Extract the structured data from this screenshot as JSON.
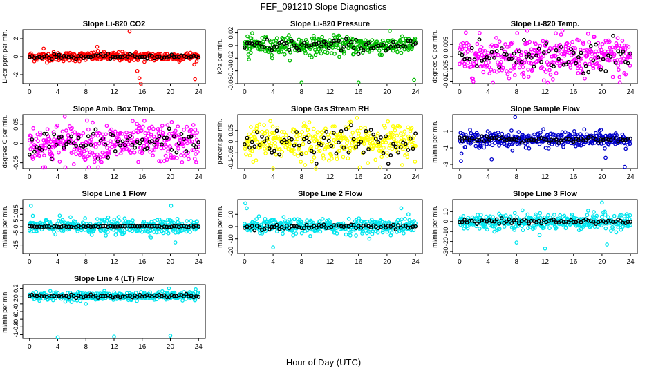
{
  "figure": {
    "title": "FEF_091210  Slope Diagnostics",
    "xlabel": "Hour of Day (UTC)"
  },
  "chart_data": [
    {
      "type": "scatter",
      "title": "Slope Li-820 CO2",
      "ylabel": "Li-cor ppm per min.",
      "xlim": [
        0,
        24
      ],
      "xticks": [
        0,
        4,
        8,
        12,
        16,
        20,
        24
      ],
      "ylim": [
        -3,
        3
      ],
      "yticks": [
        -2,
        0,
        2
      ],
      "color": "#ff0000",
      "noise": 0.25,
      "outliers": [
        [
          14.2,
          2.8
        ],
        [
          15.3,
          -1.6
        ],
        [
          15.6,
          -2.4
        ],
        [
          15.8,
          -3.0
        ],
        [
          23.5,
          -2.5
        ],
        [
          9.6,
          1.1
        ],
        [
          2.0,
          0.9
        ]
      ],
      "mean_noise": 0.12
    },
    {
      "type": "scatter",
      "title": "Slope Li-820 Pressure",
      "ylabel": "kPa per min.",
      "xlim": [
        0,
        24
      ],
      "xticks": [
        0,
        4,
        8,
        12,
        16,
        20,
        24
      ],
      "ylim": [
        -0.06,
        0.025
      ],
      "yticks": [
        -0.06,
        -0.04,
        -0.02,
        0.0,
        0.02
      ],
      "color": "#00bb00",
      "noise": 0.007,
      "center": 0.0,
      "outliers": [
        [
          8.0,
          -0.058
        ],
        [
          16.0,
          -0.058
        ],
        [
          23.8,
          -0.054
        ],
        [
          0.6,
          -0.022
        ]
      ],
      "mean_noise": 0.005
    },
    {
      "type": "scatter",
      "title": "Slope Li-820 Temp.",
      "ylabel": "degrees C per min.",
      "xlim": [
        0,
        24
      ],
      "xticks": [
        0,
        4,
        8,
        12,
        16,
        20,
        24
      ],
      "ylim": [
        -0.011,
        0.011
      ],
      "yticks": [
        -0.01,
        -0.005,
        0.0,
        0.005
      ],
      "color": "#ff00ff",
      "noise": 0.004,
      "center": 0.0,
      "outliers": [
        [
          9.5,
          0.0105
        ],
        [
          22.5,
          -0.0105
        ]
      ],
      "mean_noise": 0.004
    },
    {
      "type": "scatter",
      "title": "Slope Amb. Box Temp.",
      "ylabel": "degrees C per min.",
      "xlim": [
        0,
        24
      ],
      "xticks": [
        0,
        4,
        8,
        12,
        16,
        20,
        24
      ],
      "ylim": [
        -0.065,
        0.075
      ],
      "yticks": [
        -0.05,
        0.0,
        0.05
      ],
      "color": "#ff00ff",
      "noise": 0.025,
      "center": 0.0,
      "outliers": [
        [
          2.2,
          -0.062
        ],
        [
          5.0,
          0.07
        ]
      ],
      "mean_noise": 0.018
    },
    {
      "type": "scatter",
      "title": "Slope Gas Stream RH",
      "ylabel": "percent per min.",
      "xlim": [
        0,
        24
      ],
      "xticks": [
        0,
        4,
        8,
        12,
        16,
        20,
        24
      ],
      "ylim": [
        -0.12,
        0.12
      ],
      "yticks": [
        -0.1,
        -0.05,
        0.0,
        0.05
      ],
      "color": "#ffff00",
      "noise": 0.04,
      "center": 0.0,
      "outliers": [
        [
          4.0,
          -0.12
        ],
        [
          10.0,
          -0.12
        ]
      ],
      "mean_noise": 0.035
    },
    {
      "type": "scatter",
      "title": "Slope Sample Flow",
      "ylabel": "ml/min per min.",
      "xlim": [
        0,
        24
      ],
      "xticks": [
        0,
        4,
        8,
        12,
        16,
        20,
        24
      ],
      "ylim": [
        -3.5,
        3.0
      ],
      "yticks": [
        -3,
        -1,
        1
      ],
      "color": "#0000cc",
      "noise": 0.45,
      "center": 0.0,
      "outliers": [
        [
          0.2,
          -2.6
        ],
        [
          7.8,
          2.7
        ],
        [
          23.2,
          -3.3
        ],
        [
          4.5,
          -2.4
        ],
        [
          20.5,
          -2.2
        ]
      ],
      "mean_noise": 0.15
    },
    {
      "type": "scatter",
      "title": "Slope Line 1 Flow",
      "ylabel": "ml/min per min.",
      "xlim": [
        0,
        24
      ],
      "xticks": [
        0,
        4,
        8,
        12,
        16,
        20,
        24
      ],
      "ylim": [
        -22,
        22
      ],
      "yticks": [
        -15,
        -5,
        0,
        5,
        10,
        15
      ],
      "color": "#00e5ee",
      "noise": 3.0,
      "center": 0.0,
      "outliers": [
        [
          0.2,
          17
        ],
        [
          20.1,
          17
        ],
        [
          20.7,
          -13
        ]
      ],
      "mean_noise": 0.3
    },
    {
      "type": "scatter",
      "title": "Slope Line 2 Flow",
      "ylabel": "ml/min per min.",
      "xlim": [
        0,
        24
      ],
      "xticks": [
        0,
        4,
        8,
        12,
        16,
        20,
        24
      ],
      "ylim": [
        -22,
        22
      ],
      "yticks": [
        -20,
        -10,
        0,
        10
      ],
      "color": "#00e5ee",
      "noise": 3.0,
      "center": 0.0,
      "outliers": [
        [
          0.1,
          19
        ],
        [
          0.3,
          15
        ],
        [
          4.0,
          -17
        ],
        [
          22.0,
          15
        ],
        [
          23.0,
          10
        ]
      ],
      "mean_noise": 1.2
    },
    {
      "type": "scatter",
      "title": "Slope Line 3 Flow",
      "ylabel": "ml/min per min.",
      "xlim": [
        0,
        24
      ],
      "xticks": [
        0,
        4,
        8,
        12,
        16,
        20,
        24
      ],
      "ylim": [
        -32,
        22
      ],
      "yticks": [
        -30,
        -20,
        -10,
        0,
        10
      ],
      "color": "#00e5ee",
      "noise": 4.0,
      "center": 0.0,
      "outliers": [
        [
          20.0,
          19
        ],
        [
          20.7,
          -23
        ],
        [
          8.0,
          -21
        ],
        [
          12.0,
          -27
        ]
      ],
      "mean_noise": 1.5
    },
    {
      "type": "scatter",
      "title": "Slope Line 4 (LT) Flow",
      "ylabel": "ml/min per min.",
      "xlim": [
        0,
        24
      ],
      "xticks": [
        0,
        4,
        8,
        12,
        16,
        20,
        24
      ],
      "ylim": [
        -1.1,
        0.3
      ],
      "yticks": [
        -1.0,
        -0.8,
        -0.6,
        -0.4,
        -0.2,
        0.0,
        0.2
      ],
      "color": "#00e5ee",
      "noise": 0.05,
      "center": 0.0,
      "outliers": [
        [
          4.0,
          -1.07
        ],
        [
          12.0,
          -1.05
        ],
        [
          20.0,
          -1.03
        ],
        [
          8.0,
          -0.2
        ],
        [
          19.8,
          0.2
        ]
      ],
      "mean_noise": 0.02
    }
  ]
}
